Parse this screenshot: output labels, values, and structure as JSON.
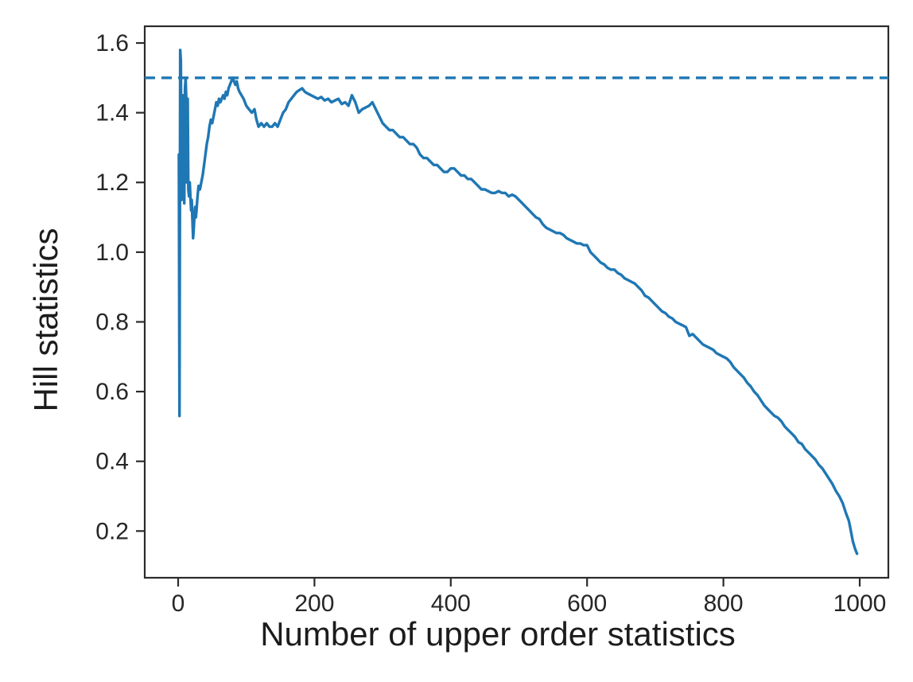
{
  "figure": {
    "background": "#ffffff",
    "axis_color": "#2b2b2b",
    "tick_label_color": "#262626"
  },
  "chart_data": {
    "type": "line",
    "title": "",
    "xlabel": "Number of upper order statistics",
    "ylabel": "Hill statistics",
    "xlim": [
      -49,
      1042
    ],
    "ylim": [
      0.066,
      1.648
    ],
    "grid": false,
    "legend": null,
    "x_ticks": {
      "values": [
        0,
        200,
        400,
        600,
        800,
        1000
      ],
      "labels": [
        "0",
        "200",
        "400",
        "600",
        "800",
        "1000"
      ]
    },
    "y_ticks": {
      "values": [
        0.2,
        0.4,
        0.6,
        0.8,
        1.0,
        1.2,
        1.4,
        1.6
      ],
      "labels": [
        "0.2",
        "0.4",
        "0.6",
        "0.8",
        "1.0",
        "1.2",
        "1.4",
        "1.6"
      ]
    },
    "reference_line": {
      "y": 1.5,
      "style": "dashed",
      "color": "#1f77b4"
    },
    "series": [
      {
        "color": "#1f77b4",
        "points": [
          [
            1,
            1.28
          ],
          [
            2,
            0.53
          ],
          [
            3,
            1.58
          ],
          [
            4,
            1.55
          ],
          [
            5,
            1.15
          ],
          [
            6,
            1.44
          ],
          [
            7,
            1.29
          ],
          [
            8,
            1.45
          ],
          [
            9,
            1.14
          ],
          [
            10,
            1.47
          ],
          [
            11,
            1.5
          ],
          [
            12,
            1.43
          ],
          [
            13,
            1.2
          ],
          [
            14,
            1.44
          ],
          [
            15,
            1.18
          ],
          [
            16,
            1.16
          ],
          [
            17,
            1.2
          ],
          [
            18,
            1.16
          ],
          [
            19,
            1.12
          ],
          [
            20,
            1.15
          ],
          [
            21,
            1.09
          ],
          [
            22,
            1.04
          ],
          [
            23,
            1.07
          ],
          [
            24,
            1.11
          ],
          [
            25,
            1.13
          ],
          [
            26,
            1.1
          ],
          [
            27,
            1.12
          ],
          [
            28,
            1.15
          ],
          [
            29,
            1.17
          ],
          [
            30,
            1.19
          ],
          [
            32,
            1.18
          ],
          [
            34,
            1.2
          ],
          [
            36,
            1.22
          ],
          [
            38,
            1.25
          ],
          [
            40,
            1.28
          ],
          [
            42,
            1.31
          ],
          [
            44,
            1.33
          ],
          [
            46,
            1.36
          ],
          [
            48,
            1.38
          ],
          [
            50,
            1.37
          ],
          [
            52,
            1.39
          ],
          [
            54,
            1.41
          ],
          [
            56,
            1.43
          ],
          [
            58,
            1.42
          ],
          [
            60,
            1.44
          ],
          [
            62,
            1.43
          ],
          [
            64,
            1.44
          ],
          [
            66,
            1.45
          ],
          [
            68,
            1.44
          ],
          [
            70,
            1.46
          ],
          [
            72,
            1.45
          ],
          [
            74,
            1.47
          ],
          [
            76,
            1.48
          ],
          [
            78,
            1.49
          ],
          [
            80,
            1.5
          ],
          [
            82,
            1.49
          ],
          [
            84,
            1.48
          ],
          [
            86,
            1.49
          ],
          [
            88,
            1.47
          ],
          [
            90,
            1.46
          ],
          [
            93,
            1.45
          ],
          [
            96,
            1.44
          ],
          [
            100,
            1.42
          ],
          [
            104,
            1.41
          ],
          [
            108,
            1.4
          ],
          [
            112,
            1.41
          ],
          [
            115,
            1.38
          ],
          [
            118,
            1.36
          ],
          [
            122,
            1.37
          ],
          [
            126,
            1.36
          ],
          [
            130,
            1.37
          ],
          [
            134,
            1.36
          ],
          [
            138,
            1.36
          ],
          [
            142,
            1.37
          ],
          [
            146,
            1.36
          ],
          [
            150,
            1.38
          ],
          [
            154,
            1.4
          ],
          [
            158,
            1.41
          ],
          [
            162,
            1.43
          ],
          [
            166,
            1.44
          ],
          [
            170,
            1.45
          ],
          [
            174,
            1.46
          ],
          [
            178,
            1.465
          ],
          [
            182,
            1.47
          ],
          [
            186,
            1.46
          ],
          [
            190,
            1.455
          ],
          [
            195,
            1.45
          ],
          [
            200,
            1.445
          ],
          [
            205,
            1.44
          ],
          [
            210,
            1.445
          ],
          [
            215,
            1.435
          ],
          [
            220,
            1.44
          ],
          [
            225,
            1.43
          ],
          [
            230,
            1.435
          ],
          [
            235,
            1.44
          ],
          [
            240,
            1.425
          ],
          [
            245,
            1.43
          ],
          [
            250,
            1.42
          ],
          [
            255,
            1.45
          ],
          [
            260,
            1.43
          ],
          [
            265,
            1.4
          ],
          [
            270,
            1.41
          ],
          [
            275,
            1.415
          ],
          [
            280,
            1.42
          ],
          [
            285,
            1.43
          ],
          [
            290,
            1.41
          ],
          [
            295,
            1.39
          ],
          [
            300,
            1.37
          ],
          [
            305,
            1.36
          ],
          [
            310,
            1.35
          ],
          [
            315,
            1.35
          ],
          [
            320,
            1.34
          ],
          [
            325,
            1.33
          ],
          [
            330,
            1.33
          ],
          [
            335,
            1.32
          ],
          [
            340,
            1.31
          ],
          [
            345,
            1.31
          ],
          [
            350,
            1.3
          ],
          [
            355,
            1.28
          ],
          [
            360,
            1.27
          ],
          [
            365,
            1.27
          ],
          [
            370,
            1.26
          ],
          [
            375,
            1.25
          ],
          [
            380,
            1.25
          ],
          [
            385,
            1.24
          ],
          [
            390,
            1.23
          ],
          [
            395,
            1.23
          ],
          [
            400,
            1.24
          ],
          [
            405,
            1.24
          ],
          [
            410,
            1.23
          ],
          [
            415,
            1.22
          ],
          [
            420,
            1.22
          ],
          [
            425,
            1.21
          ],
          [
            430,
            1.21
          ],
          [
            435,
            1.2
          ],
          [
            440,
            1.19
          ],
          [
            445,
            1.18
          ],
          [
            450,
            1.18
          ],
          [
            455,
            1.175
          ],
          [
            460,
            1.17
          ],
          [
            465,
            1.17
          ],
          [
            470,
            1.175
          ],
          [
            475,
            1.17
          ],
          [
            480,
            1.17
          ],
          [
            485,
            1.16
          ],
          [
            490,
            1.165
          ],
          [
            495,
            1.16
          ],
          [
            500,
            1.15
          ],
          [
            505,
            1.14
          ],
          [
            510,
            1.13
          ],
          [
            515,
            1.12
          ],
          [
            520,
            1.11
          ],
          [
            525,
            1.1
          ],
          [
            530,
            1.095
          ],
          [
            535,
            1.08
          ],
          [
            540,
            1.07
          ],
          [
            545,
            1.065
          ],
          [
            550,
            1.06
          ],
          [
            555,
            1.055
          ],
          [
            560,
            1.055
          ],
          [
            565,
            1.05
          ],
          [
            570,
            1.04
          ],
          [
            575,
            1.035
          ],
          [
            580,
            1.03
          ],
          [
            585,
            1.025
          ],
          [
            590,
            1.025
          ],
          [
            595,
            1.02
          ],
          [
            600,
            1.02
          ],
          [
            605,
            1.0
          ],
          [
            610,
            0.99
          ],
          [
            615,
            0.98
          ],
          [
            620,
            0.97
          ],
          [
            625,
            0.965
          ],
          [
            630,
            0.955
          ],
          [
            635,
            0.95
          ],
          [
            640,
            0.95
          ],
          [
            645,
            0.94
          ],
          [
            650,
            0.935
          ],
          [
            655,
            0.925
          ],
          [
            660,
            0.92
          ],
          [
            665,
            0.915
          ],
          [
            670,
            0.91
          ],
          [
            675,
            0.9
          ],
          [
            680,
            0.89
          ],
          [
            685,
            0.875
          ],
          [
            690,
            0.87
          ],
          [
            695,
            0.86
          ],
          [
            700,
            0.85
          ],
          [
            705,
            0.84
          ],
          [
            710,
            0.83
          ],
          [
            715,
            0.825
          ],
          [
            720,
            0.815
          ],
          [
            725,
            0.81
          ],
          [
            730,
            0.8
          ],
          [
            735,
            0.795
          ],
          [
            740,
            0.79
          ],
          [
            745,
            0.785
          ],
          [
            750,
            0.76
          ],
          [
            755,
            0.765
          ],
          [
            760,
            0.755
          ],
          [
            765,
            0.745
          ],
          [
            770,
            0.735
          ],
          [
            775,
            0.73
          ],
          [
            780,
            0.725
          ],
          [
            785,
            0.72
          ],
          [
            790,
            0.71
          ],
          [
            795,
            0.705
          ],
          [
            800,
            0.7
          ],
          [
            805,
            0.695
          ],
          [
            810,
            0.685
          ],
          [
            815,
            0.67
          ],
          [
            820,
            0.66
          ],
          [
            825,
            0.65
          ],
          [
            830,
            0.64
          ],
          [
            835,
            0.625
          ],
          [
            840,
            0.615
          ],
          [
            845,
            0.6
          ],
          [
            850,
            0.59
          ],
          [
            855,
            0.575
          ],
          [
            860,
            0.56
          ],
          [
            865,
            0.55
          ],
          [
            870,
            0.54
          ],
          [
            875,
            0.53
          ],
          [
            880,
            0.525
          ],
          [
            885,
            0.515
          ],
          [
            890,
            0.5
          ],
          [
            895,
            0.49
          ],
          [
            900,
            0.48
          ],
          [
            905,
            0.47
          ],
          [
            910,
            0.455
          ],
          [
            915,
            0.45
          ],
          [
            920,
            0.435
          ],
          [
            925,
            0.425
          ],
          [
            930,
            0.415
          ],
          [
            935,
            0.405
          ],
          [
            940,
            0.39
          ],
          [
            945,
            0.38
          ],
          [
            950,
            0.365
          ],
          [
            955,
            0.35
          ],
          [
            960,
            0.335
          ],
          [
            965,
            0.315
          ],
          [
            970,
            0.3
          ],
          [
            975,
            0.28
          ],
          [
            980,
            0.25
          ],
          [
            984,
            0.23
          ],
          [
            987,
            0.2
          ],
          [
            990,
            0.17
          ],
          [
            993,
            0.15
          ],
          [
            996,
            0.135
          ]
        ]
      }
    ]
  }
}
